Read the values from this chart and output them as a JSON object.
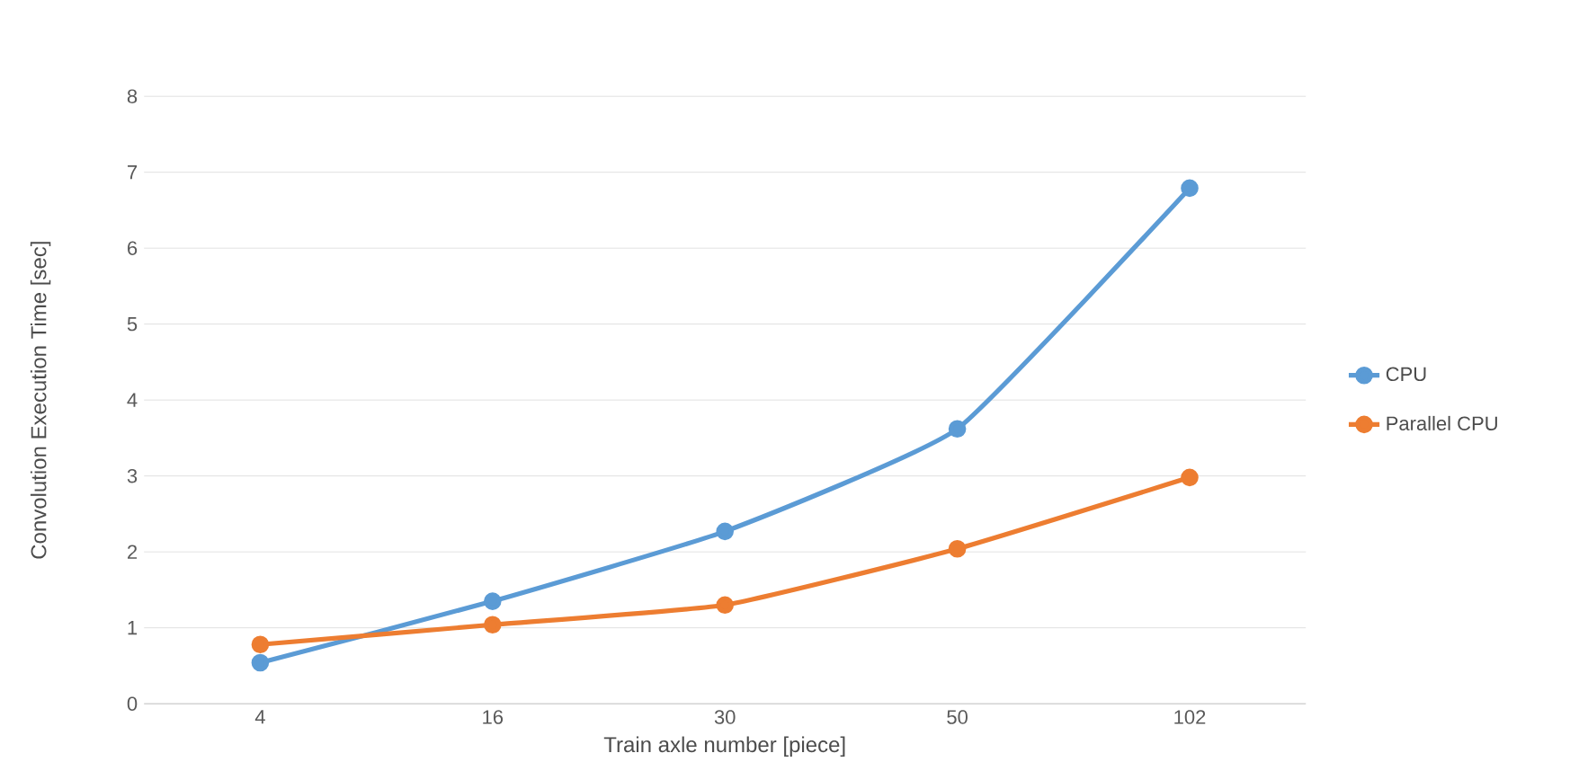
{
  "chart_data": {
    "type": "line",
    "xlabel": "Train axle number [piece]",
    "ylabel": "Convolution Execution Time [sec]",
    "categories": [
      "4",
      "16",
      "30",
      "50",
      "102"
    ],
    "series": [
      {
        "name": "CPU",
        "color": "#5b9bd5",
        "values": [
          0.54,
          1.35,
          2.27,
          3.62,
          6.79
        ]
      },
      {
        "name": "Parallel CPU",
        "color": "#ed7d31",
        "values": [
          0.78,
          1.04,
          1.3,
          2.04,
          2.98
        ]
      }
    ],
    "ylim": [
      0,
      8
    ],
    "yticks": [
      0,
      1,
      2,
      3,
      4,
      5,
      6,
      7,
      8
    ],
    "grid": "y",
    "legend": "right",
    "marker": "circle",
    "line_style": "solid"
  }
}
